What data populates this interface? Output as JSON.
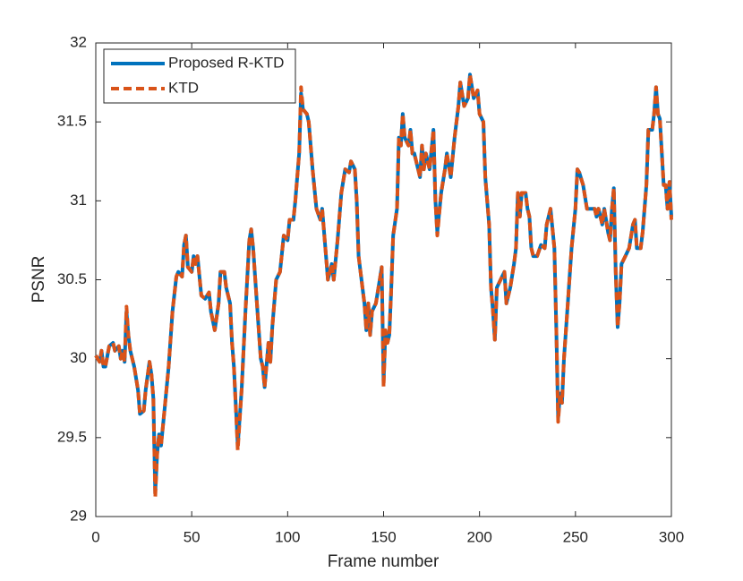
{
  "chart_data": {
    "type": "line",
    "xlabel": "Frame number",
    "ylabel": "PSNR",
    "xlim": [
      0,
      300
    ],
    "xticks": [
      0,
      50,
      100,
      150,
      200,
      250,
      300
    ],
    "ylim": [
      29,
      32
    ],
    "yticks": [
      29,
      29.5,
      30,
      30.5,
      31,
      31.5,
      32
    ],
    "legend": "upper left",
    "x": [
      0,
      2,
      3,
      4,
      5,
      7,
      9,
      10,
      12,
      13,
      14,
      15,
      16,
      17,
      18,
      20,
      22,
      23,
      25,
      26,
      28,
      29,
      30,
      31,
      32,
      33,
      34,
      36,
      38,
      40,
      42,
      43,
      45,
      46,
      47,
      48,
      50,
      51,
      52,
      53,
      55,
      57,
      59,
      60,
      62,
      64,
      65,
      67,
      68,
      70,
      71,
      72,
      74,
      76,
      78,
      80,
      81,
      82,
      84,
      86,
      87,
      88,
      90,
      91,
      92,
      94,
      96,
      98,
      100,
      101,
      103,
      104,
      106,
      107,
      108,
      110,
      111,
      113,
      115,
      117,
      118,
      120,
      121,
      123,
      124,
      126,
      128,
      130,
      132,
      133,
      135,
      136,
      137,
      139,
      140,
      141,
      142,
      143,
      144,
      146,
      148,
      149,
      150,
      151,
      152,
      153,
      154,
      155,
      157,
      158,
      159,
      160,
      161,
      163,
      164,
      165,
      166,
      168,
      169,
      170,
      171,
      172,
      174,
      176,
      177,
      178,
      180,
      182,
      183,
      185,
      187,
      189,
      190,
      192,
      194,
      195,
      197,
      199,
      200,
      202,
      203,
      205,
      206,
      207,
      208,
      209,
      211,
      213,
      214,
      216,
      218,
      219,
      220,
      221,
      222,
      224,
      225,
      226,
      227,
      228,
      230,
      232,
      234,
      235,
      237,
      239,
      240,
      241,
      242,
      243,
      244,
      246,
      248,
      250,
      251,
      252,
      254,
      256,
      258,
      260,
      261,
      262,
      263,
      264,
      265,
      267,
      268,
      269,
      270,
      271,
      272,
      273,
      274,
      276,
      278,
      280,
      281,
      282,
      284,
      285,
      287,
      288,
      290,
      291,
      292,
      293,
      294,
      296,
      297,
      298,
      299,
      300
    ],
    "series": [
      {
        "name": "Proposed R-KTD",
        "color": "#0072bd",
        "dash": false,
        "values": [
          30.02,
          29.98,
          30.05,
          29.95,
          29.95,
          30.08,
          30.1,
          30.05,
          30.08,
          30.0,
          30.05,
          29.98,
          30.3,
          30.15,
          30.05,
          29.95,
          29.8,
          29.65,
          29.67,
          29.8,
          29.98,
          29.9,
          29.75,
          29.15,
          29.4,
          29.52,
          29.45,
          29.7,
          29.95,
          30.3,
          30.52,
          30.55,
          30.52,
          30.72,
          30.78,
          30.58,
          30.55,
          30.65,
          30.6,
          30.65,
          30.4,
          30.38,
          30.42,
          30.3,
          30.18,
          30.35,
          30.55,
          30.55,
          30.45,
          30.35,
          30.1,
          29.95,
          29.45,
          29.8,
          30.3,
          30.75,
          30.82,
          30.7,
          30.35,
          30.0,
          29.95,
          29.82,
          30.1,
          29.98,
          30.2,
          30.5,
          30.55,
          30.78,
          30.75,
          30.88,
          30.88,
          31.0,
          31.3,
          31.68,
          31.58,
          31.55,
          31.5,
          31.2,
          30.95,
          30.88,
          30.95,
          30.65,
          30.5,
          30.6,
          30.5,
          30.75,
          31.05,
          31.2,
          31.18,
          31.25,
          31.2,
          31.0,
          30.65,
          30.45,
          30.35,
          30.18,
          30.35,
          30.15,
          30.3,
          30.35,
          30.5,
          30.58,
          29.85,
          30.18,
          30.1,
          30.15,
          30.45,
          30.78,
          30.95,
          31.4,
          31.35,
          31.55,
          31.4,
          31.35,
          31.45,
          31.3,
          31.3,
          31.2,
          31.15,
          31.35,
          31.2,
          31.3,
          31.2,
          31.45,
          31.0,
          30.8,
          31.05,
          31.2,
          31.3,
          31.15,
          31.4,
          31.6,
          31.75,
          31.6,
          31.65,
          31.8,
          31.65,
          31.7,
          31.55,
          31.5,
          31.15,
          30.85,
          30.45,
          30.3,
          30.12,
          30.45,
          30.5,
          30.55,
          30.35,
          30.45,
          30.6,
          30.7,
          31.05,
          30.9,
          31.05,
          31.05,
          30.95,
          30.9,
          30.7,
          30.65,
          30.65,
          30.72,
          30.7,
          30.85,
          30.95,
          30.7,
          30.2,
          29.62,
          29.78,
          29.72,
          30.0,
          30.35,
          30.7,
          30.95,
          31.2,
          31.18,
          31.1,
          30.95,
          30.95,
          30.95,
          30.9,
          30.95,
          30.9,
          30.85,
          30.95,
          30.8,
          30.75,
          30.95,
          31.08,
          30.55,
          30.2,
          30.35,
          30.6,
          30.65,
          30.7,
          30.85,
          30.88,
          30.7,
          30.7,
          30.8,
          31.1,
          31.45,
          31.45,
          31.55,
          31.72,
          31.55,
          31.52,
          31.1,
          31.1,
          30.95,
          31.12,
          30.9
        ]
      },
      {
        "name": "KTD",
        "color": "#d95319",
        "dash": true,
        "values": [
          30.02,
          29.98,
          30.05,
          29.95,
          29.95,
          30.08,
          30.1,
          30.05,
          30.08,
          30.0,
          30.05,
          29.98,
          30.33,
          30.15,
          30.05,
          29.95,
          29.8,
          29.65,
          29.67,
          29.8,
          29.98,
          29.9,
          29.75,
          29.12,
          29.4,
          29.52,
          29.45,
          29.7,
          29.95,
          30.3,
          30.52,
          30.55,
          30.52,
          30.72,
          30.78,
          30.58,
          30.55,
          30.65,
          30.6,
          30.65,
          30.4,
          30.38,
          30.42,
          30.3,
          30.18,
          30.35,
          30.55,
          30.55,
          30.45,
          30.35,
          30.1,
          29.95,
          29.42,
          29.8,
          30.3,
          30.75,
          30.82,
          30.7,
          30.35,
          30.0,
          29.95,
          29.82,
          30.1,
          29.98,
          30.2,
          30.5,
          30.55,
          30.78,
          30.75,
          30.88,
          30.88,
          31.0,
          31.3,
          31.72,
          31.58,
          31.55,
          31.5,
          31.2,
          30.95,
          30.88,
          30.95,
          30.65,
          30.5,
          30.6,
          30.5,
          30.75,
          31.05,
          31.2,
          31.18,
          31.25,
          31.2,
          31.0,
          30.65,
          30.45,
          30.35,
          30.18,
          30.35,
          30.15,
          30.3,
          30.35,
          30.5,
          30.58,
          29.82,
          30.18,
          30.1,
          30.15,
          30.45,
          30.78,
          30.95,
          31.4,
          31.35,
          31.55,
          31.4,
          31.35,
          31.45,
          31.3,
          31.3,
          31.2,
          31.15,
          31.35,
          31.2,
          31.3,
          31.2,
          31.45,
          31.0,
          30.78,
          31.05,
          31.2,
          31.3,
          31.15,
          31.4,
          31.6,
          31.75,
          31.6,
          31.65,
          31.8,
          31.65,
          31.7,
          31.55,
          31.5,
          31.15,
          30.85,
          30.45,
          30.3,
          30.12,
          30.45,
          30.5,
          30.55,
          30.35,
          30.45,
          30.6,
          30.7,
          31.05,
          30.9,
          31.05,
          31.05,
          30.95,
          30.9,
          30.7,
          30.65,
          30.65,
          30.72,
          30.7,
          30.85,
          30.95,
          30.7,
          30.2,
          29.6,
          29.78,
          29.72,
          30.0,
          30.35,
          30.7,
          30.95,
          31.2,
          31.18,
          31.1,
          30.95,
          30.95,
          30.95,
          30.9,
          30.95,
          30.9,
          30.85,
          30.95,
          30.8,
          30.75,
          30.95,
          31.08,
          30.55,
          30.2,
          30.35,
          30.6,
          30.65,
          30.7,
          30.85,
          30.88,
          30.7,
          30.7,
          30.8,
          31.1,
          31.45,
          31.45,
          31.55,
          31.72,
          31.55,
          31.52,
          31.1,
          31.1,
          30.95,
          31.12,
          30.88
        ]
      }
    ]
  }
}
